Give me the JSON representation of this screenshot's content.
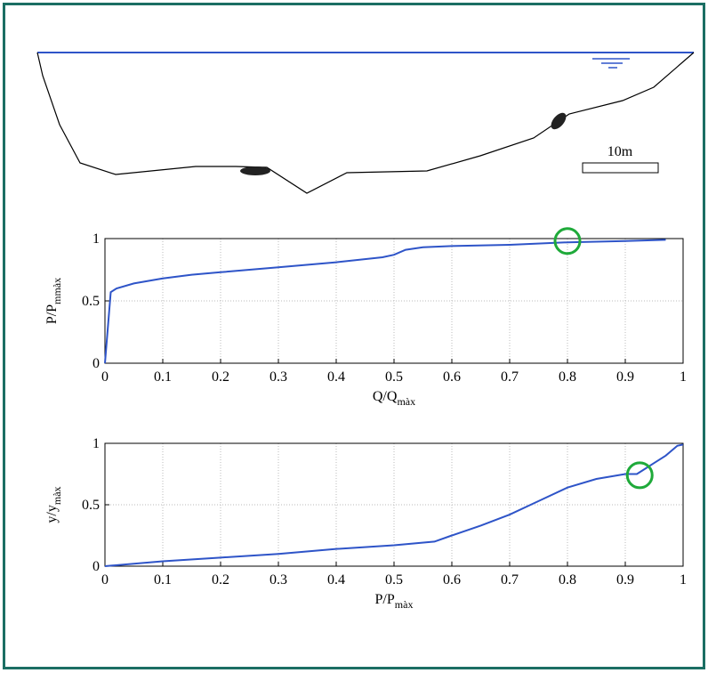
{
  "diagram": {
    "scale_label": "10m"
  },
  "chart_data": [
    {
      "type": "line",
      "xlabel": [
        "Q/Q",
        "màx"
      ],
      "ylabel": [
        "P/P",
        "mmàx"
      ],
      "xlim": [
        0,
        1
      ],
      "ylim": [
        0,
        1
      ],
      "xticks": [
        0,
        0.1,
        0.2,
        0.3,
        0.4,
        0.5,
        0.6,
        0.7,
        0.8,
        0.9,
        1
      ],
      "yticks": [
        0,
        0.5,
        1
      ],
      "grid": true,
      "series": [
        {
          "color": "#2e54c8",
          "x": [
            0,
            0.01,
            0.02,
            0.05,
            0.1,
            0.15,
            0.2,
            0.3,
            0.4,
            0.48,
            0.5,
            0.52,
            0.55,
            0.6,
            0.7,
            0.8,
            0.9,
            0.97
          ],
          "values": [
            0,
            0.57,
            0.6,
            0.64,
            0.68,
            0.71,
            0.73,
            0.77,
            0.81,
            0.85,
            0.87,
            0.91,
            0.93,
            0.94,
            0.95,
            0.97,
            0.98,
            0.99
          ]
        }
      ],
      "highlight": {
        "x": 0.8,
        "y": 0.98,
        "color": "#1faa3a"
      }
    },
    {
      "type": "line",
      "xlabel": [
        "P/P",
        "màx"
      ],
      "ylabel": [
        "y/y",
        "màx"
      ],
      "xlim": [
        0,
        1
      ],
      "ylim": [
        0,
        1
      ],
      "xticks": [
        0,
        0.1,
        0.2,
        0.3,
        0.4,
        0.5,
        0.6,
        0.7,
        0.8,
        0.9,
        1
      ],
      "yticks": [
        0,
        0.5,
        1
      ],
      "grid": true,
      "series": [
        {
          "color": "#2e54c8",
          "x": [
            0,
            0.1,
            0.2,
            0.3,
            0.4,
            0.5,
            0.57,
            0.6,
            0.65,
            0.7,
            0.75,
            0.8,
            0.85,
            0.9,
            0.92,
            0.93,
            0.95,
            0.97,
            0.99,
            1
          ],
          "values": [
            0,
            0.04,
            0.07,
            0.1,
            0.14,
            0.17,
            0.2,
            0.25,
            0.33,
            0.42,
            0.53,
            0.64,
            0.71,
            0.75,
            0.75,
            0.78,
            0.84,
            0.9,
            0.98,
            0.99
          ]
        }
      ],
      "highlight": {
        "x": 0.925,
        "y": 0.74,
        "color": "#1faa3a"
      }
    }
  ]
}
